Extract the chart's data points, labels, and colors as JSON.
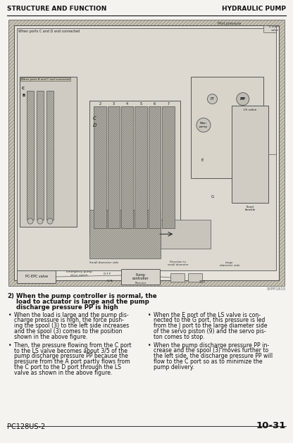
{
  "page_bg": "#f5f3f0",
  "header_left": "STRUCTURE AND FUNCTION",
  "header_right": "HYDRAULIC PUMP",
  "header_color": "#111111",
  "header_fontsize": 6.5,
  "diagram_ref": "SYPP1815",
  "section_number": "2)",
  "section_title_line1": "When the pump controller is normal, the",
  "section_title_line2": "load to actuator is large and the pump",
  "section_title_line3": "discharge pressure PP is high",
  "bullet1_left_lines": [
    "When the load is large and the pump dis-",
    "charge pressure is high, the force push-",
    "ing the spool (3) to the left side increases",
    "and the spool (3) comes to the position",
    "shown in the above figure."
  ],
  "bullet2_left_lines": [
    "Then, the pressure flowing from the C port",
    "to the LS valve becomes about 3/5 of the",
    "pump discharge pressure PP because the",
    "pressure from the A port partly flows from",
    "the C port to the D port through the LS",
    "valve as shown in the above figure."
  ],
  "bullet1_right_lines": [
    "When the E port of the LS valve is con-",
    "nected to the G port, this pressure is led",
    "from the J port to the large diameter side",
    "of the servo piston (9) and the servo pis-",
    "ton comes to stop."
  ],
  "bullet2_right_lines": [
    "When the pump discharge pressure PP in-",
    "crease and the spool (3) moves further to",
    "the left side, the discharge pressure PP will",
    "flow to the C port so as to minimize the",
    "pump delivery."
  ],
  "footer_left": "PC128US-2",
  "footer_right": "10-31",
  "text_color": "#111111",
  "light_gray": "#c8c4bc",
  "med_gray": "#a8a49c",
  "dark_gray": "#888480",
  "hatch_color": "#9a9690",
  "diagram_bg": "#ddd9d2"
}
